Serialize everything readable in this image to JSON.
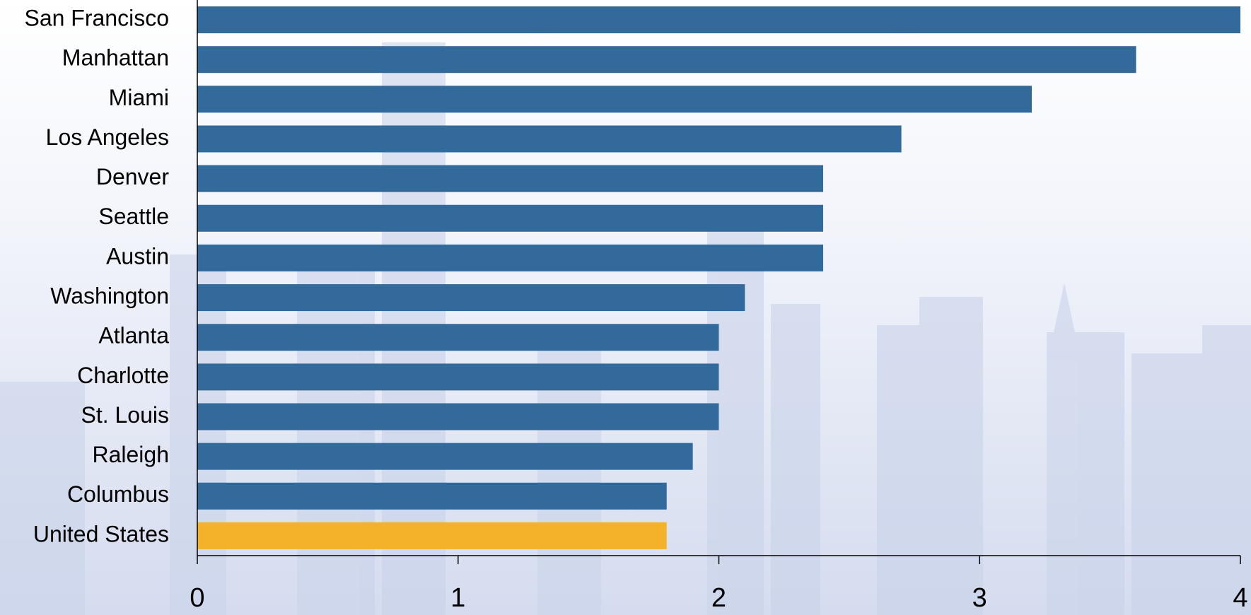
{
  "chart_data": {
    "type": "hbar",
    "categories": [
      "San Francisco",
      "Manhattan",
      "Miami",
      "Los Angeles",
      "Denver",
      "Seattle",
      "Austin",
      "Washington",
      "Atlanta",
      "Charlotte",
      "St. Louis",
      "Raleigh",
      "Columbus",
      "United States"
    ],
    "values": [
      4.0,
      3.6,
      3.2,
      2.7,
      2.4,
      2.4,
      2.4,
      2.1,
      2.0,
      2.0,
      2.0,
      1.9,
      1.8,
      1.8
    ],
    "colors": [
      "#336a9c",
      "#336a9c",
      "#336a9c",
      "#336a9c",
      "#336a9c",
      "#336a9c",
      "#336a9c",
      "#336a9c",
      "#336a9c",
      "#336a9c",
      "#336a9c",
      "#336a9c",
      "#336a9c",
      "#f3b229"
    ],
    "xlim": [
      0,
      4
    ],
    "xticks": [
      0,
      1,
      2,
      3,
      4
    ],
    "grid": false
  }
}
